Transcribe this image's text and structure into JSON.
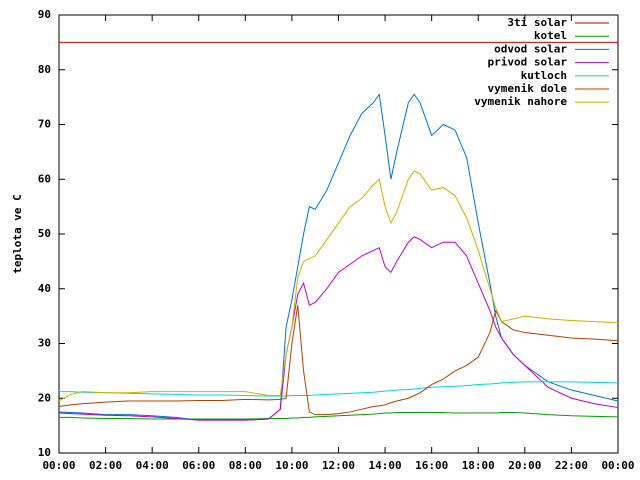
{
  "chart_data": {
    "type": "line",
    "ylabel": "teplota ve C",
    "x": [
      0,
      0.5,
      1,
      2,
      3,
      4,
      5,
      6,
      7,
      8,
      9,
      9.5,
      9.75,
      10,
      10.25,
      10.5,
      10.75,
      11,
      11.5,
      12,
      12.5,
      13,
      13.5,
      13.75,
      14,
      14.25,
      14.5,
      15,
      15.25,
      15.5,
      16,
      16.5,
      17,
      17.5,
      18,
      18.5,
      18.75,
      19,
      19.5,
      20,
      21,
      22,
      23,
      24
    ],
    "series": [
      {
        "name": "3ti solar",
        "color": "#cc0000",
        "values": [
          85,
          85,
          85,
          85,
          85,
          85,
          85,
          85,
          85,
          85,
          85,
          85,
          85,
          85,
          85,
          85,
          85,
          85,
          85,
          85,
          85,
          85,
          85,
          85,
          85,
          85,
          85,
          85,
          85,
          85,
          85,
          85,
          85,
          85,
          85,
          85,
          85,
          85,
          85,
          85,
          85,
          85,
          85,
          85
        ]
      },
      {
        "name": "kotel",
        "color": "#00a000",
        "values": [
          16.5,
          16.5,
          16.4,
          16.3,
          16.3,
          16.2,
          16.2,
          16.2,
          16.2,
          16.2,
          16.3,
          16.3,
          16.3,
          16.4,
          16.4,
          16.5,
          16.5,
          16.6,
          16.7,
          16.8,
          16.9,
          17,
          17.1,
          17.2,
          17.3,
          17.3,
          17.4,
          17.4,
          17.4,
          17.4,
          17.4,
          17.4,
          17.3,
          17.3,
          17.3,
          17.3,
          17.3,
          17.4,
          17.4,
          17.3,
          17,
          16.8,
          16.7,
          16.6
        ]
      },
      {
        "name": "odvod solar",
        "color": "#0070d0",
        "values": [
          17.5,
          17.4,
          17.3,
          17,
          17,
          16.8,
          16.5,
          16,
          16,
          16,
          16.2,
          18,
          33,
          38,
          44,
          50,
          55,
          54.5,
          58,
          63,
          68,
          72,
          74,
          75.5,
          68,
          60,
          65,
          74,
          75.5,
          74,
          68,
          70,
          69,
          64,
          52,
          41,
          35,
          31,
          28,
          26,
          23,
          21.5,
          20.5,
          19.5
        ]
      },
      {
        "name": "privod solar",
        "color": "#c000c0",
        "values": [
          17.3,
          17.2,
          17.1,
          16.9,
          16.8,
          16.6,
          16.3,
          16,
          16,
          16,
          16.2,
          18,
          28,
          33,
          39,
          41,
          37,
          37.5,
          40,
          43,
          44.5,
          46,
          47,
          47.5,
          44,
          43,
          45,
          48.5,
          49.5,
          49,
          47.5,
          48.5,
          48.5,
          46,
          41,
          36,
          33,
          31,
          28,
          26,
          22,
          20,
          19,
          18.3
        ]
      },
      {
        "name": "kutloch",
        "color": "#00d8d8",
        "values": [
          21.2,
          21.2,
          21.1,
          21,
          20.9,
          20.8,
          20.7,
          20.6,
          20.6,
          20.5,
          20.4,
          20.4,
          20.4,
          20.5,
          20.5,
          20.5,
          20.5,
          20.6,
          20.7,
          20.8,
          20.9,
          21,
          21.1,
          21.2,
          21.3,
          21.4,
          21.5,
          21.6,
          21.7,
          21.8,
          22,
          22.1,
          22.2,
          22.3,
          22.5,
          22.6,
          22.7,
          22.8,
          22.9,
          23,
          23,
          23,
          22.9,
          22.8
        ]
      },
      {
        "name": "vymenik dole",
        "color": "#b04000",
        "values": [
          18.5,
          18.8,
          19,
          19.3,
          19.5,
          19.5,
          19.5,
          19.6,
          19.6,
          19.8,
          19.7,
          19.8,
          20,
          30,
          37,
          25,
          17.5,
          17,
          17,
          17.2,
          17.5,
          18,
          18.5,
          18.6,
          18.8,
          19.2,
          19.5,
          20,
          20.5,
          21,
          22.5,
          23.5,
          25,
          26,
          27.5,
          32,
          36,
          34,
          32.5,
          32,
          31.5,
          31,
          30.8,
          30.5
        ]
      },
      {
        "name": "vymenik nahore",
        "color": "#c8b400",
        "values": [
          19.5,
          20.7,
          21.2,
          21,
          21,
          21.2,
          21.2,
          21.2,
          21.2,
          21.2,
          20.5,
          20.5,
          28,
          33,
          42,
          45,
          45.5,
          46,
          49,
          52,
          55,
          56.5,
          59,
          60,
          55,
          52,
          54,
          60,
          61.5,
          61,
          58,
          58.5,
          57,
          53,
          47,
          40,
          36.5,
          34,
          34.5,
          35,
          34.5,
          34.2,
          34,
          33.8
        ]
      }
    ],
    "xlim": [
      0,
      24
    ],
    "xticks": [
      {
        "value": 0,
        "label": "00:00"
      },
      {
        "value": 2,
        "label": "02:00"
      },
      {
        "value": 4,
        "label": "04:00"
      },
      {
        "value": 6,
        "label": "06:00"
      },
      {
        "value": 8,
        "label": "08:00"
      },
      {
        "value": 10,
        "label": "10:00"
      },
      {
        "value": 12,
        "label": "12:00"
      },
      {
        "value": 14,
        "label": "14:00"
      },
      {
        "value": 16,
        "label": "16:00"
      },
      {
        "value": 18,
        "label": "18:00"
      },
      {
        "value": 20,
        "label": "20:00"
      },
      {
        "value": 22,
        "label": "22:00"
      },
      {
        "value": 24,
        "label": "00:00"
      }
    ],
    "ylim": [
      10,
      90
    ],
    "yticks": [
      10,
      20,
      30,
      40,
      50,
      60,
      70,
      80,
      90
    ],
    "legend": "top-right"
  }
}
